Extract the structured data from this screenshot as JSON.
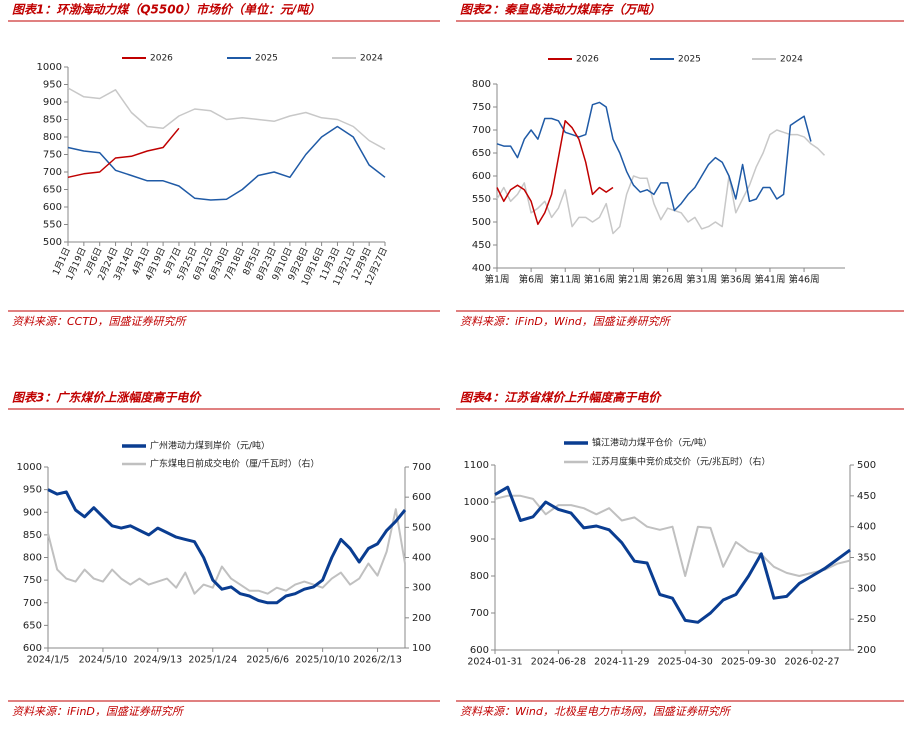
{
  "chart_data": [
    {
      "type": "line",
      "title": "图表1：环渤海动力煤（Q5500）市场价（单位：元/吨）",
      "source": "资料来源：CCTD，国盛证券研究所",
      "categories": [
        "1月1日",
        "1月19日",
        "2月6日",
        "2月24日",
        "3月14日",
        "4月1日",
        "4月19日",
        "5月7日",
        "5月25日",
        "6月12日",
        "6月30日",
        "7月18日",
        "8月5日",
        "8月23日",
        "9月10日",
        "9月28日",
        "10月16日",
        "11月3日",
        "11月21日",
        "12月9日",
        "12月27日"
      ],
      "series": [
        {
          "name": "2026",
          "color": "#c00000",
          "values": [
            685,
            695,
            700,
            740,
            745,
            760,
            770,
            825,
            null,
            null,
            null,
            null,
            null,
            null,
            null,
            null,
            null,
            null,
            null,
            null,
            null
          ]
        },
        {
          "name": "2025",
          "color": "#1f5aa6",
          "values": [
            770,
            760,
            755,
            705,
            690,
            675,
            675,
            660,
            625,
            620,
            622,
            650,
            690,
            700,
            685,
            750,
            800,
            830,
            800,
            720,
            685
          ]
        },
        {
          "name": "2024",
          "color": "#c8c8c8",
          "values": [
            940,
            915,
            910,
            935,
            870,
            830,
            825,
            860,
            880,
            875,
            850,
            855,
            850,
            845,
            860,
            870,
            855,
            850,
            830,
            790,
            765
          ]
        }
      ],
      "ylim": [
        500,
        1000
      ],
      "yticks": [
        500,
        550,
        600,
        650,
        700,
        750,
        800,
        850,
        900,
        950,
        1000
      ],
      "legend": "top"
    },
    {
      "type": "line",
      "title": "图表2：秦皇岛港动力煤库存（万吨）",
      "source": "资料来源：iFinD，Wind，国盛证券研究所",
      "categories": [
        "第1周",
        null,
        null,
        null,
        null,
        "第6周",
        null,
        null,
        null,
        null,
        "第11周",
        null,
        null,
        null,
        null,
        "第16周",
        null,
        null,
        null,
        null,
        "第21周",
        null,
        null,
        null,
        null,
        "第26周",
        null,
        null,
        null,
        null,
        "第31周",
        null,
        null,
        null,
        null,
        "第36周",
        null,
        null,
        null,
        null,
        "第41周",
        null,
        null,
        null,
        null,
        "第46周",
        null,
        null,
        null,
        null,
        null,
        null
      ],
      "series": [
        {
          "name": "2026",
          "color": "#c00000",
          "values": [
            575,
            545,
            570,
            580,
            570,
            545,
            495,
            520,
            560,
            640,
            720,
            705,
            680,
            630,
            560,
            575,
            565,
            575,
            null,
            null,
            null,
            null,
            null,
            null,
            null,
            null,
            null,
            null,
            null,
            null,
            null,
            null,
            null,
            null,
            null,
            null,
            null,
            null,
            null,
            null,
            null,
            null,
            null,
            null,
            null,
            null,
            null,
            null,
            null,
            null,
            null,
            null
          ]
        },
        {
          "name": "2025",
          "color": "#1f5aa6",
          "values": [
            670,
            665,
            665,
            640,
            680,
            700,
            680,
            725,
            725,
            720,
            695,
            690,
            685,
            690,
            755,
            760,
            750,
            680,
            650,
            610,
            580,
            565,
            570,
            560,
            585,
            585,
            525,
            540,
            560,
            575,
            600,
            625,
            640,
            630,
            600,
            550,
            625,
            545,
            550,
            575,
            575,
            550,
            560,
            710,
            720,
            730,
            675,
            null,
            null,
            null,
            null,
            null
          ]
        },
        {
          "name": "2024",
          "color": "#c8c8c8",
          "values": [
            550,
            575,
            545,
            560,
            585,
            520,
            530,
            545,
            510,
            530,
            570,
            490,
            510,
            510,
            500,
            510,
            540,
            475,
            490,
            560,
            600,
            595,
            595,
            540,
            505,
            530,
            525,
            520,
            500,
            510,
            485,
            490,
            500,
            490,
            600,
            520,
            550,
            580,
            620,
            650,
            690,
            700,
            695,
            690,
            690,
            685,
            670,
            660,
            645,
            null,
            null,
            null
          ]
        }
      ],
      "ylim": [
        400,
        800
      ],
      "yticks": [
        400,
        450,
        500,
        550,
        600,
        650,
        700,
        750,
        800
      ],
      "legend": "top"
    },
    {
      "type": "line",
      "title": "图表3：广东煤价上涨幅度高于电价",
      "source": "资料来源：iFinD，国盛证券研究所",
      "categories": [
        "2024/1/5",
        null,
        null,
        null,
        null,
        null,
        "2024/5/10",
        null,
        null,
        null,
        null,
        null,
        "2024/9/13",
        null,
        null,
        null,
        null,
        null,
        "2025/1/24",
        null,
        null,
        null,
        null,
        null,
        "2025/6/6",
        null,
        null,
        null,
        null,
        null,
        "2025/10/10",
        null,
        null,
        null,
        null,
        null,
        "2026/2/13",
        null,
        null,
        null
      ],
      "series": [
        {
          "name": "广州港动力煤到岸价（元/吨）",
          "color": "#0a3d91",
          "values": [
            950,
            940,
            945,
            905,
            890,
            910,
            890,
            870,
            865,
            870,
            860,
            850,
            865,
            855,
            845,
            840,
            835,
            800,
            750,
            730,
            735,
            720,
            715,
            705,
            700,
            700,
            715,
            720,
            730,
            735,
            750,
            800,
            840,
            820,
            790,
            820,
            830,
            860,
            880,
            905
          ]
        },
        {
          "name": "广东煤电日前成交电价（厘/千瓦时）（右）",
          "color": "#c0c0c0",
          "axis": "y2",
          "values": [
            480,
            360,
            330,
            320,
            360,
            330,
            320,
            360,
            330,
            310,
            330,
            310,
            320,
            330,
            300,
            350,
            280,
            310,
            300,
            370,
            330,
            310,
            290,
            290,
            280,
            300,
            290,
            310,
            320,
            310,
            300,
            330,
            350,
            310,
            330,
            380,
            340,
            420,
            560,
            380
          ]
        }
      ],
      "ylim": [
        600,
        1000
      ],
      "yticks": [
        600,
        650,
        700,
        750,
        800,
        850,
        900,
        950,
        1000
      ],
      "y2lim": [
        100,
        700
      ],
      "y2ticks": [
        100,
        200,
        300,
        400,
        500,
        600,
        700
      ],
      "legend": "left"
    },
    {
      "type": "line",
      "title": "图表4：江苏省煤价上升幅度高于电价",
      "source": "资料来源：Wind，北极星电力市场网，国盛证券研究所",
      "categories": [
        "2024-01-31",
        null,
        null,
        null,
        null,
        "2024-06-28",
        null,
        null,
        null,
        null,
        "2024-11-29",
        null,
        null,
        null,
        null,
        "2025-04-30",
        null,
        null,
        null,
        null,
        "2025-09-30",
        null,
        null,
        null,
        null,
        "2026-02-27",
        null,
        null,
        null
      ],
      "series": [
        {
          "name": "镇江港动力煤平仓价（元/吨）",
          "color": "#0a3d91",
          "values": [
            1020,
            1040,
            950,
            960,
            1000,
            980,
            970,
            930,
            935,
            925,
            890,
            840,
            835,
            750,
            740,
            680,
            675,
            700,
            735,
            750,
            800,
            860,
            740,
            745,
            780,
            800,
            820,
            845,
            870
          ]
        },
        {
          "name": "江苏月度集中竞价成交价（元/兆瓦时）（右）",
          "color": "#c0c0c0",
          "axis": "y2",
          "values": [
            445,
            450,
            450,
            445,
            420,
            435,
            435,
            430,
            420,
            430,
            410,
            415,
            400,
            395,
            400,
            320,
            400,
            398,
            335,
            375,
            360,
            355,
            335,
            325,
            320,
            325,
            330,
            340,
            345
          ]
        }
      ],
      "ylim": [
        600,
        1100
      ],
      "yticks": [
        600,
        700,
        800,
        900,
        1000,
        1100
      ],
      "y2lim": [
        200,
        500
      ],
      "y2ticks": [
        200,
        250,
        300,
        350,
        400,
        450,
        500
      ],
      "legend": "left"
    }
  ]
}
